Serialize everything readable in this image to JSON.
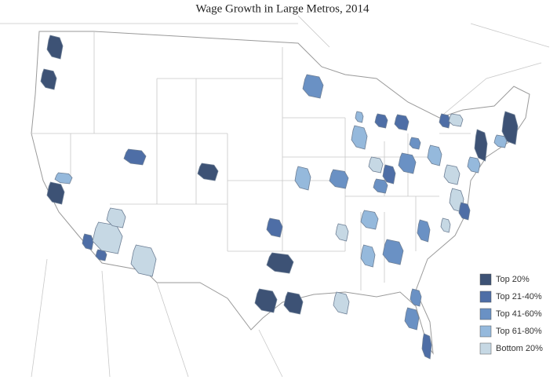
{
  "title": "Wage Growth in Large Metros, 2014",
  "legend": [
    {
      "label": "Top 20%",
      "color": "#3d5275"
    },
    {
      "label": "Top 21-40%",
      "color": "#4e6ea6"
    },
    {
      "label": "Top 41-60%",
      "color": "#6a91c4"
    },
    {
      "label": "Top 61-80%",
      "color": "#95b9dc"
    },
    {
      "label": "Bottom 20%",
      "color": "#c6d8e4"
    }
  ]
}
